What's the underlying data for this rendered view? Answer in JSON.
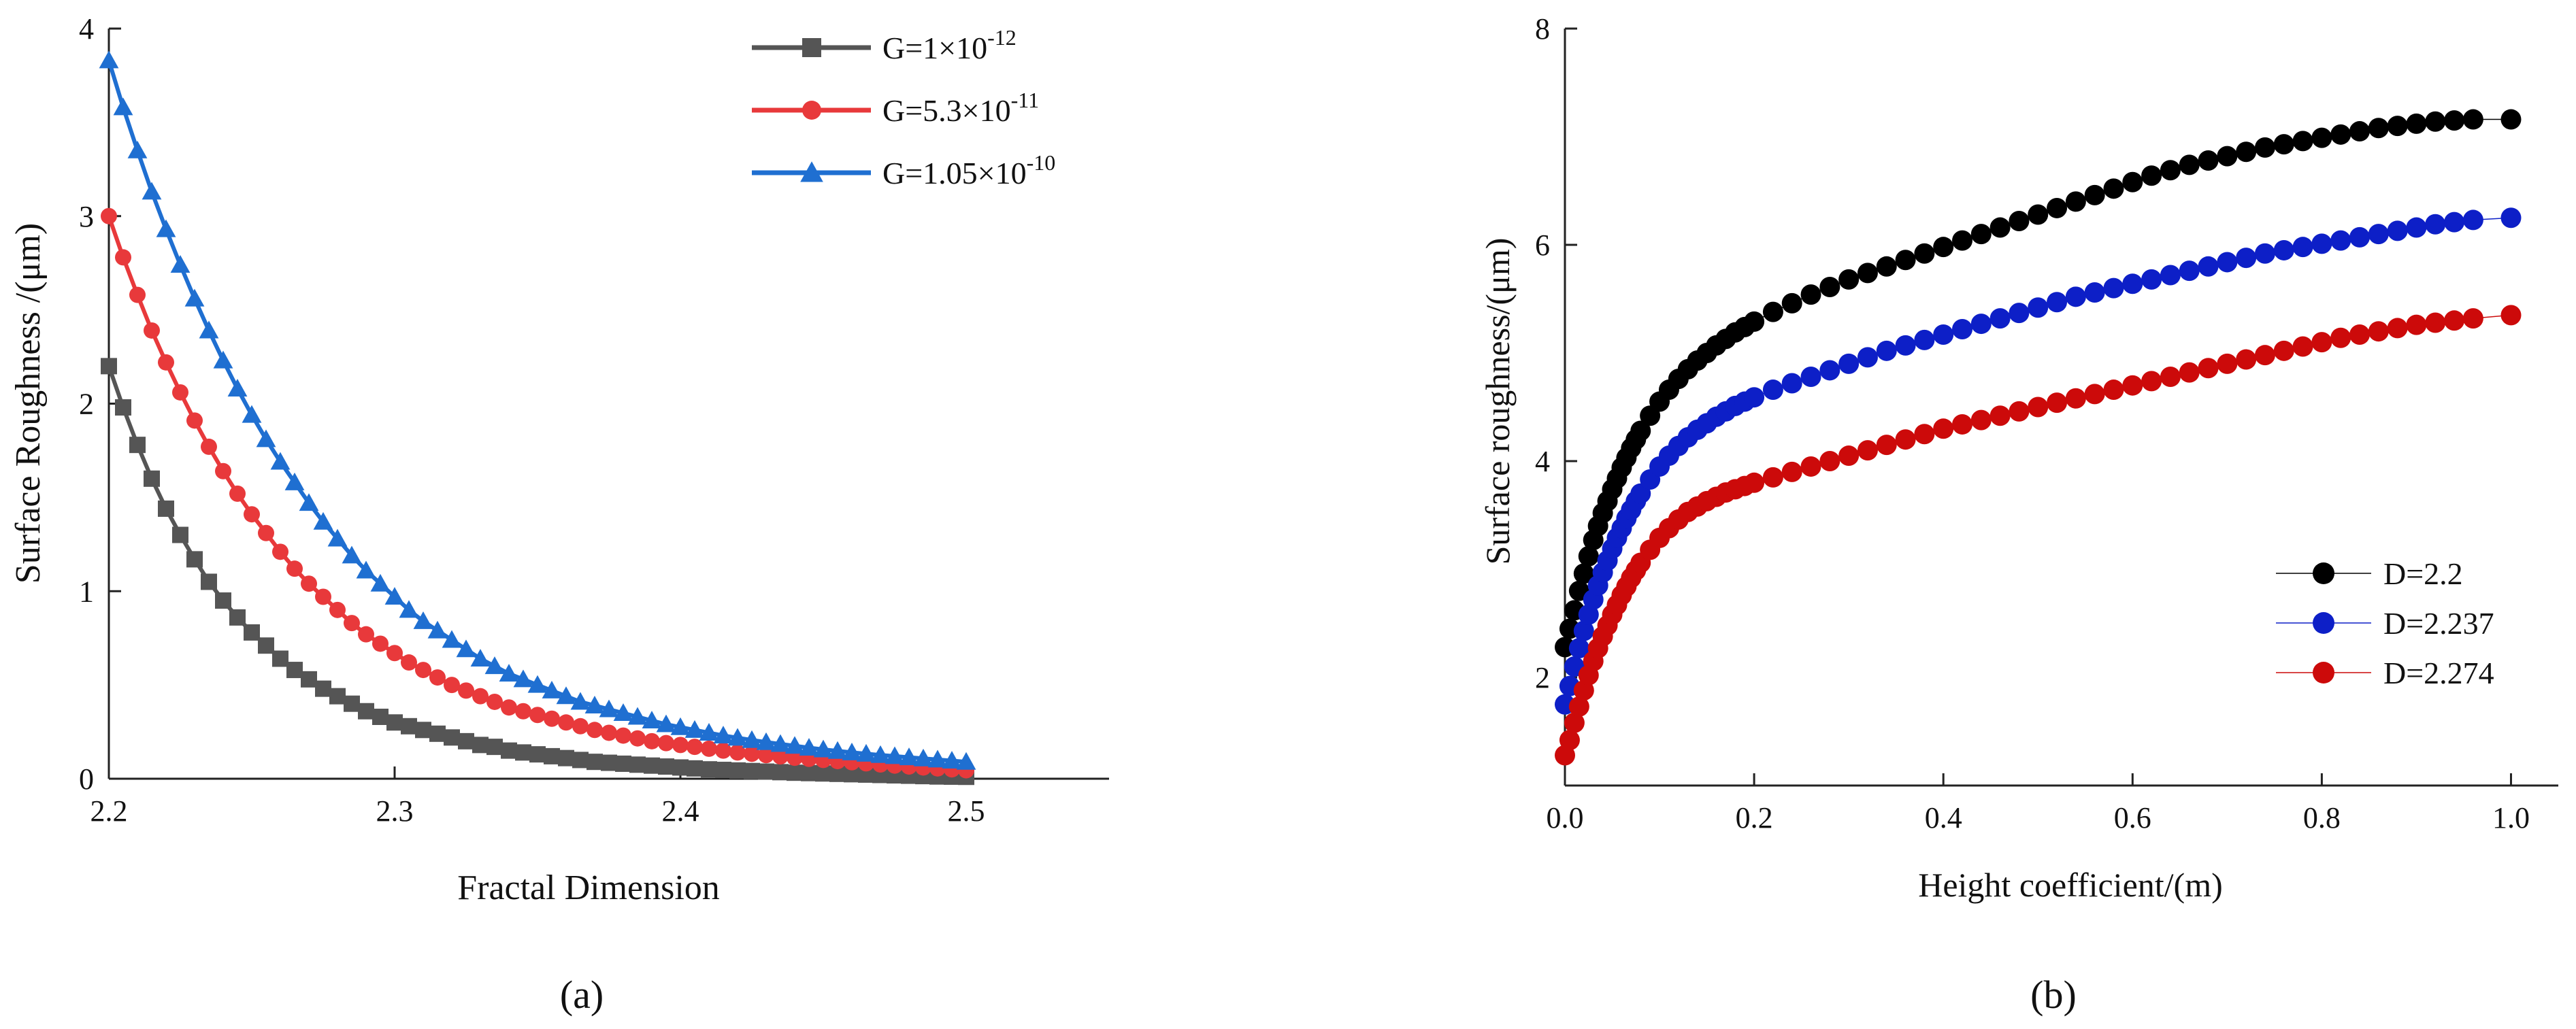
{
  "chart_data": [
    {
      "type": "line",
      "panel": "a",
      "title": "",
      "xlabel": "Fractal Dimension",
      "ylabel": "Surface Roughness /(μm)",
      "xlim": [
        2.2,
        2.55
      ],
      "ylim": [
        0,
        4
      ],
      "xticks": [
        2.2,
        2.3,
        2.4,
        2.5
      ],
      "yticks": [
        0,
        1,
        2,
        3,
        4
      ],
      "grid": false,
      "legend_position": "top-right",
      "x": [
        2.2,
        2.205,
        2.21,
        2.215,
        2.22,
        2.225,
        2.23,
        2.235,
        2.24,
        2.245,
        2.25,
        2.255,
        2.26,
        2.265,
        2.27,
        2.275,
        2.28,
        2.285,
        2.29,
        2.295,
        2.3,
        2.305,
        2.31,
        2.315,
        2.32,
        2.325,
        2.33,
        2.335,
        2.34,
        2.345,
        2.35,
        2.355,
        2.36,
        2.365,
        2.37,
        2.375,
        2.38,
        2.385,
        2.39,
        2.395,
        2.4,
        2.405,
        2.41,
        2.415,
        2.42,
        2.425,
        2.43,
        2.435,
        2.44,
        2.445,
        2.45,
        2.455,
        2.46,
        2.465,
        2.47,
        2.475,
        2.48,
        2.485,
        2.49,
        2.495,
        2.5
      ],
      "series": [
        {
          "name_main": "G=1×10",
          "name_exp": "-12",
          "marker": "square",
          "color": "#555555",
          "values": [
            2.2,
            1.98,
            1.78,
            1.6,
            1.44,
            1.3,
            1.17,
            1.05,
            0.95,
            0.86,
            0.78,
            0.71,
            0.64,
            0.58,
            0.53,
            0.48,
            0.44,
            0.4,
            0.36,
            0.33,
            0.3,
            0.28,
            0.26,
            0.24,
            0.22,
            0.2,
            0.18,
            0.17,
            0.15,
            0.14,
            0.13,
            0.12,
            0.11,
            0.1,
            0.09,
            0.085,
            0.08,
            0.075,
            0.07,
            0.065,
            0.06,
            0.055,
            0.05,
            0.047,
            0.044,
            0.041,
            0.038,
            0.035,
            0.032,
            0.03,
            0.028,
            0.026,
            0.024,
            0.022,
            0.02,
            0.018,
            0.016,
            0.014,
            0.012,
            0.011,
            0.01
          ]
        },
        {
          "name_main": "G=5.3×10",
          "name_exp": "-11",
          "marker": "circle",
          "color": "#e8393b",
          "values": [
            3.0,
            2.78,
            2.58,
            2.39,
            2.22,
            2.06,
            1.91,
            1.77,
            1.64,
            1.52,
            1.41,
            1.31,
            1.21,
            1.12,
            1.04,
            0.97,
            0.9,
            0.83,
            0.77,
            0.72,
            0.67,
            0.62,
            0.58,
            0.54,
            0.5,
            0.47,
            0.44,
            0.41,
            0.38,
            0.36,
            0.34,
            0.32,
            0.3,
            0.28,
            0.26,
            0.245,
            0.23,
            0.215,
            0.2,
            0.19,
            0.18,
            0.17,
            0.16,
            0.15,
            0.14,
            0.133,
            0.126,
            0.119,
            0.112,
            0.106,
            0.1,
            0.094,
            0.088,
            0.082,
            0.076,
            0.07,
            0.065,
            0.06,
            0.055,
            0.05,
            0.045
          ]
        },
        {
          "name_main": "G=1.05×10",
          "name_exp": "-10",
          "marker": "triangle",
          "color": "#1f6fd1",
          "values": [
            3.83,
            3.58,
            3.35,
            3.13,
            2.93,
            2.74,
            2.56,
            2.39,
            2.23,
            2.08,
            1.94,
            1.81,
            1.69,
            1.58,
            1.47,
            1.37,
            1.28,
            1.19,
            1.11,
            1.04,
            0.97,
            0.9,
            0.84,
            0.79,
            0.74,
            0.69,
            0.64,
            0.6,
            0.56,
            0.53,
            0.5,
            0.47,
            0.44,
            0.41,
            0.39,
            0.37,
            0.35,
            0.33,
            0.31,
            0.29,
            0.275,
            0.26,
            0.245,
            0.23,
            0.218,
            0.206,
            0.195,
            0.185,
            0.175,
            0.165,
            0.156,
            0.148,
            0.14,
            0.133,
            0.126,
            0.12,
            0.114,
            0.108,
            0.102,
            0.096,
            0.09
          ]
        }
      ]
    },
    {
      "type": "scatter",
      "panel": "b",
      "title": "",
      "xlabel": "Height coefficient/(m)",
      "ylabel": "Surface roughness/(μm)",
      "xlim": [
        0.0,
        1.05
      ],
      "ylim": [
        1,
        8
      ],
      "xticks": [
        0.0,
        0.2,
        0.4,
        0.6,
        0.8,
        1.0
      ],
      "yticks": [
        2,
        4,
        6,
        8
      ],
      "grid": false,
      "legend_position": "bottom-right",
      "x": [
        0.0,
        0.005,
        0.01,
        0.015,
        0.02,
        0.025,
        0.03,
        0.035,
        0.04,
        0.045,
        0.05,
        0.055,
        0.06,
        0.065,
        0.07,
        0.075,
        0.08,
        0.09,
        0.1,
        0.11,
        0.12,
        0.13,
        0.14,
        0.15,
        0.16,
        0.17,
        0.18,
        0.19,
        0.2,
        0.22,
        0.24,
        0.26,
        0.28,
        0.3,
        0.32,
        0.34,
        0.36,
        0.38,
        0.4,
        0.42,
        0.44,
        0.46,
        0.48,
        0.5,
        0.52,
        0.54,
        0.56,
        0.58,
        0.6,
        0.62,
        0.64,
        0.66,
        0.68,
        0.7,
        0.72,
        0.74,
        0.76,
        0.78,
        0.8,
        0.82,
        0.84,
        0.86,
        0.88,
        0.9,
        0.92,
        0.94,
        0.96,
        1.0
      ],
      "series": [
        {
          "name": "D=2.2",
          "color": "#000000",
          "values": [
            2.28,
            2.45,
            2.62,
            2.8,
            2.96,
            3.12,
            3.27,
            3.4,
            3.52,
            3.63,
            3.74,
            3.84,
            3.94,
            4.03,
            4.12,
            4.2,
            4.28,
            4.42,
            4.55,
            4.66,
            4.76,
            4.85,
            4.93,
            5.0,
            5.07,
            5.13,
            5.19,
            5.24,
            5.29,
            5.38,
            5.46,
            5.54,
            5.61,
            5.68,
            5.74,
            5.8,
            5.86,
            5.92,
            5.98,
            6.04,
            6.1,
            6.16,
            6.22,
            6.28,
            6.34,
            6.4,
            6.46,
            6.52,
            6.58,
            6.64,
            6.69,
            6.74,
            6.78,
            6.82,
            6.86,
            6.9,
            6.93,
            6.96,
            6.99,
            7.02,
            7.05,
            7.08,
            7.1,
            7.12,
            7.14,
            7.15,
            7.16,
            7.16
          ]
        },
        {
          "name": "D=2.237",
          "color": "#0d1fc7",
          "values": [
            1.75,
            1.92,
            2.1,
            2.27,
            2.43,
            2.58,
            2.72,
            2.85,
            2.97,
            3.08,
            3.19,
            3.29,
            3.38,
            3.47,
            3.55,
            3.63,
            3.7,
            3.83,
            3.95,
            4.05,
            4.14,
            4.22,
            4.29,
            4.35,
            4.41,
            4.46,
            4.51,
            4.55,
            4.59,
            4.66,
            4.72,
            4.78,
            4.84,
            4.9,
            4.96,
            5.02,
            5.07,
            5.12,
            5.17,
            5.22,
            5.27,
            5.32,
            5.37,
            5.42,
            5.47,
            5.52,
            5.56,
            5.6,
            5.64,
            5.68,
            5.72,
            5.76,
            5.8,
            5.84,
            5.88,
            5.92,
            5.95,
            5.98,
            6.01,
            6.04,
            6.07,
            6.1,
            6.13,
            6.16,
            6.19,
            6.21,
            6.23,
            6.25
          ]
        },
        {
          "name": "D=2.274",
          "color": "#cc0a0a",
          "values": [
            1.28,
            1.42,
            1.58,
            1.73,
            1.88,
            2.02,
            2.15,
            2.27,
            2.38,
            2.48,
            2.58,
            2.67,
            2.76,
            2.84,
            2.92,
            2.99,
            3.06,
            3.18,
            3.29,
            3.38,
            3.46,
            3.53,
            3.58,
            3.63,
            3.67,
            3.71,
            3.74,
            3.77,
            3.8,
            3.85,
            3.9,
            3.95,
            4.0,
            4.05,
            4.1,
            4.15,
            4.2,
            4.25,
            4.3,
            4.34,
            4.38,
            4.42,
            4.46,
            4.5,
            4.54,
            4.58,
            4.62,
            4.66,
            4.7,
            4.74,
            4.78,
            4.82,
            4.86,
            4.9,
            4.94,
            4.98,
            5.02,
            5.06,
            5.1,
            5.14,
            5.17,
            5.2,
            5.23,
            5.26,
            5.28,
            5.3,
            5.32,
            5.35
          ]
        }
      ]
    }
  ],
  "panel_labels": {
    "a": "(a)",
    "b": "(b)"
  }
}
